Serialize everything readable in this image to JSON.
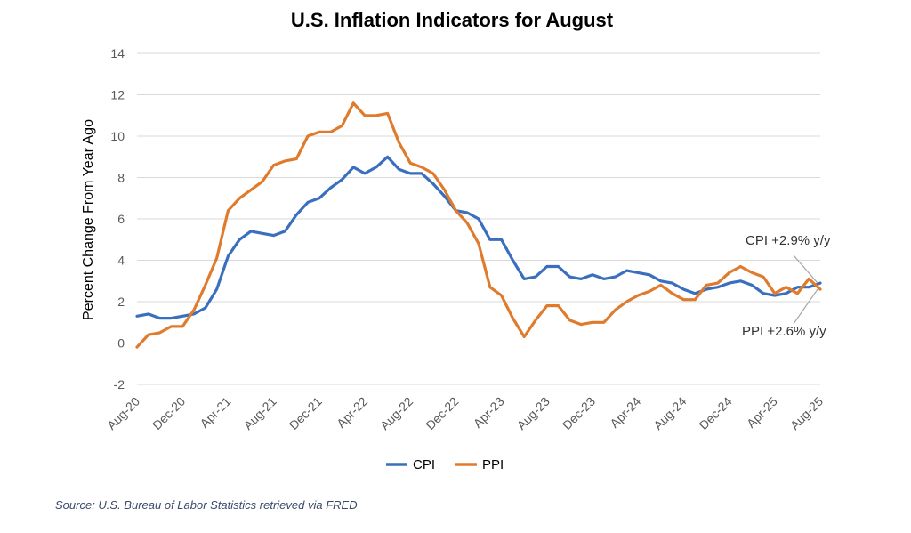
{
  "chart_data": {
    "type": "line",
    "title": "U.S. Inflation Indicators for August",
    "ylabel": "Percent Change From Year Ago",
    "xlabel": "",
    "ylim": [
      -2,
      14
    ],
    "yticks": [
      -2,
      0,
      2,
      4,
      6,
      8,
      10,
      12,
      14
    ],
    "grid": "horizontal",
    "legend_position": "bottom",
    "x": [
      "2020-08",
      "2020-09",
      "2020-10",
      "2020-11",
      "2020-12",
      "2021-01",
      "2021-02",
      "2021-03",
      "2021-04",
      "2021-05",
      "2021-06",
      "2021-07",
      "2021-08",
      "2021-09",
      "2021-10",
      "2021-11",
      "2021-12",
      "2022-01",
      "2022-02",
      "2022-03",
      "2022-04",
      "2022-05",
      "2022-06",
      "2022-07",
      "2022-08",
      "2022-09",
      "2022-10",
      "2022-11",
      "2022-12",
      "2023-01",
      "2023-02",
      "2023-03",
      "2023-04",
      "2023-05",
      "2023-06",
      "2023-07",
      "2023-08",
      "2023-09",
      "2023-10",
      "2023-11",
      "2023-12",
      "2024-01",
      "2024-02",
      "2024-03",
      "2024-04",
      "2024-05",
      "2024-06",
      "2024-07",
      "2024-08",
      "2024-09",
      "2024-10",
      "2024-11",
      "2024-12",
      "2025-01",
      "2025-02",
      "2025-03",
      "2025-04",
      "2025-05",
      "2025-06",
      "2025-07",
      "2025-08"
    ],
    "xtick_labels": [
      {
        "label": "Aug-20",
        "index": 0
      },
      {
        "label": "Dec-20",
        "index": 4
      },
      {
        "label": "Apr-21",
        "index": 8
      },
      {
        "label": "Aug-21",
        "index": 12
      },
      {
        "label": "Dec-21",
        "index": 16
      },
      {
        "label": "Apr-22",
        "index": 20
      },
      {
        "label": "Aug-22",
        "index": 24
      },
      {
        "label": "Dec-22",
        "index": 28
      },
      {
        "label": "Apr-23",
        "index": 32
      },
      {
        "label": "Aug-23",
        "index": 36
      },
      {
        "label": "Dec-23",
        "index": 40
      },
      {
        "label": "Apr-24",
        "index": 44
      },
      {
        "label": "Aug-24",
        "index": 48
      },
      {
        "label": "Dec-24",
        "index": 52
      },
      {
        "label": "Apr-25",
        "index": 56
      },
      {
        "label": "Aug-25",
        "index": 60
      }
    ],
    "series": [
      {
        "name": "CPI",
        "color": "#3a6fbf",
        "values": [
          1.3,
          1.4,
          1.2,
          1.2,
          1.3,
          1.4,
          1.7,
          2.6,
          4.2,
          5.0,
          5.4,
          5.3,
          5.2,
          5.4,
          6.2,
          6.8,
          7.0,
          7.5,
          7.9,
          8.5,
          8.2,
          8.5,
          9.0,
          8.4,
          8.2,
          8.2,
          7.7,
          7.1,
          6.4,
          6.3,
          6.0,
          5.0,
          5.0,
          4.0,
          3.1,
          3.2,
          3.7,
          3.7,
          3.2,
          3.1,
          3.3,
          3.1,
          3.2,
          3.5,
          3.4,
          3.3,
          3.0,
          2.9,
          2.6,
          2.4,
          2.6,
          2.7,
          2.9,
          3.0,
          2.8,
          2.4,
          2.3,
          2.4,
          2.7,
          2.7,
          2.9
        ]
      },
      {
        "name": "PPI",
        "color": "#e07b2e",
        "values": [
          -0.2,
          0.4,
          0.5,
          0.8,
          0.8,
          1.6,
          2.8,
          4.1,
          6.4,
          7.0,
          7.4,
          7.8,
          8.6,
          8.8,
          8.9,
          10.0,
          10.2,
          10.2,
          10.5,
          11.6,
          11.0,
          11.0,
          11.1,
          9.7,
          8.7,
          8.5,
          8.2,
          7.4,
          6.4,
          5.8,
          4.8,
          2.7,
          2.3,
          1.2,
          0.3,
          1.1,
          1.8,
          1.8,
          1.1,
          0.9,
          1.0,
          1.0,
          1.6,
          2.0,
          2.3,
          2.5,
          2.8,
          2.4,
          2.1,
          2.1,
          2.8,
          2.9,
          3.4,
          3.7,
          3.4,
          3.2,
          2.4,
          2.7,
          2.4,
          3.1,
          2.6
        ]
      }
    ],
    "annotations": [
      {
        "text": "CPI +2.9% y/y",
        "series": "CPI",
        "index": 60
      },
      {
        "text": "PPI +2.6% y/y",
        "series": "PPI",
        "index": 60
      }
    ]
  },
  "source_note": "Source: U.S. Bureau of Labor Statistics retrieved via FRED"
}
